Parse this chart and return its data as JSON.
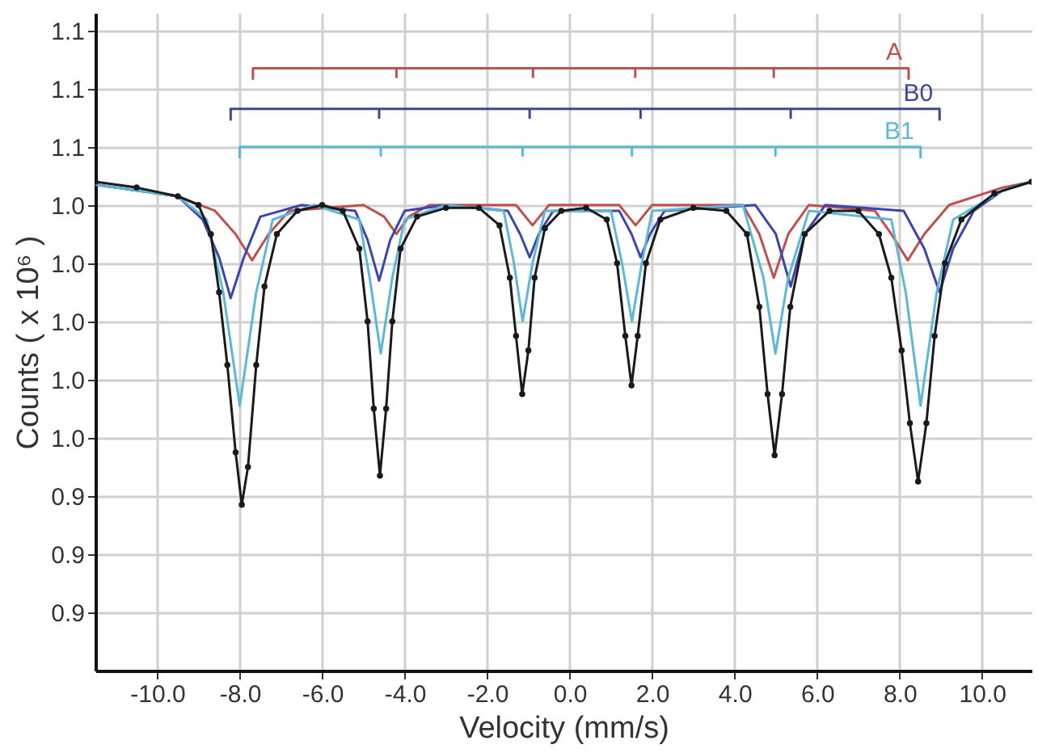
{
  "chart_data": {
    "type": "line",
    "xlabel": "Velocity (mm/s)",
    "ylabel": "Counts ( x 10⁶ )",
    "xlim": [
      -11.5,
      11.2
    ],
    "ylim": [
      0.88,
      1.106
    ],
    "xticks": [
      {
        "value": -10,
        "label": "-10.0"
      },
      {
        "value": -8,
        "label": "-8.0"
      },
      {
        "value": -6,
        "label": "-6.0"
      },
      {
        "value": -4,
        "label": "-4.0"
      },
      {
        "value": -2,
        "label": "-2.0"
      },
      {
        "value": 0,
        "label": "0.0"
      },
      {
        "value": 2,
        "label": "2.0"
      },
      {
        "value": 4,
        "label": "4.0"
      },
      {
        "value": 6,
        "label": "6.0"
      },
      {
        "value": 8,
        "label": "8.0"
      },
      {
        "value": 10,
        "label": "10.0"
      }
    ],
    "yticks": [
      {
        "value": 0.9,
        "label": "0.9"
      },
      {
        "value": 0.92,
        "label": "0.9"
      },
      {
        "value": 0.94,
        "label": "0.9"
      },
      {
        "value": 0.96,
        "label": "1.0"
      },
      {
        "value": 0.98,
        "label": "1.0"
      },
      {
        "value": 1.0,
        "label": "1.0"
      },
      {
        "value": 1.02,
        "label": "1.0"
      },
      {
        "value": 1.04,
        "label": "1.0"
      },
      {
        "value": 1.06,
        "label": "1.1"
      },
      {
        "value": 1.08,
        "label": "1.1"
      },
      {
        "value": 1.1,
        "label": "1.1"
      }
    ],
    "grid": true,
    "line_style": "solid",
    "series": [
      {
        "name": "A",
        "marker": "none",
        "color": "#c0504d",
        "x": [
          -7.68,
          -7.68,
          -4.2,
          -4.2,
          -4.2,
          -0.89,
          -0.89,
          -0.89,
          1.59,
          1.59,
          1.59,
          4.95,
          4.95,
          4.95,
          8.22,
          8.22
        ],
        "values": [
          1.083,
          1.087,
          1.087,
          1.084,
          1.087,
          1.087,
          1.084,
          1.087,
          1.087,
          1.084,
          1.087,
          1.087,
          1.084,
          1.087,
          1.087,
          1.083
        ]
      },
      {
        "name": "B0",
        "marker": "none",
        "color": "#3f4a8a",
        "x": [
          -8.22,
          -8.22,
          -4.62,
          -4.62,
          -4.62,
          -0.97,
          -0.97,
          -0.97,
          1.72,
          1.72,
          1.72,
          5.36,
          5.36,
          5.36,
          8.97,
          8.97
        ],
        "values": [
          1.069,
          1.073,
          1.073,
          1.07,
          1.073,
          1.073,
          1.07,
          1.073,
          1.073,
          1.07,
          1.073,
          1.073,
          1.07,
          1.073,
          1.073,
          1.069
        ]
      },
      {
        "name": "B1",
        "marker": "none",
        "color": "#5bb8d6",
        "x": [
          -8.0,
          -8.0,
          -4.58,
          -4.58,
          -4.58,
          -1.14,
          -1.14,
          -1.14,
          1.51,
          1.51,
          1.51,
          4.99,
          4.99,
          4.99,
          8.51,
          8.51
        ],
        "values": [
          1.056,
          1.06,
          1.06,
          1.057,
          1.06,
          1.06,
          1.057,
          1.06,
          1.06,
          1.057,
          1.06,
          1.06,
          1.057,
          1.06,
          1.06,
          1.056
        ]
      },
      {
        "marker": "none",
        "color": "#c0504d",
        "x": [
          -11.5,
          -9.5,
          -8.6,
          -8.1,
          -7.7,
          -7.3,
          -6.8,
          -5.0,
          -4.5,
          -4.2,
          -3.9,
          -3.4,
          -1.3,
          -0.9,
          -0.5,
          1.2,
          1.6,
          2.0,
          4.2,
          4.6,
          4.95,
          5.3,
          5.8,
          7.4,
          7.8,
          8.2,
          8.6,
          9.2,
          10.5,
          11.2
        ],
        "values": [
          1.047,
          1.043,
          1.038,
          1.03,
          1.021,
          1.03,
          1.038,
          1.04,
          1.036,
          1.03,
          1.036,
          1.04,
          1.04,
          1.033,
          1.04,
          1.04,
          1.033,
          1.04,
          1.04,
          1.03,
          1.015,
          1.03,
          1.04,
          1.038,
          1.03,
          1.021,
          1.03,
          1.04,
          1.046,
          1.048
        ]
      },
      {
        "marker": "none",
        "color": "#3b45b0",
        "x": [
          -11.5,
          -9.5,
          -8.9,
          -8.5,
          -8.22,
          -7.9,
          -7.5,
          -6.5,
          -5.2,
          -4.9,
          -4.62,
          -4.35,
          -4.0,
          -3.0,
          -1.5,
          -1.2,
          -0.97,
          -0.75,
          -0.4,
          1.2,
          1.5,
          1.72,
          1.95,
          2.3,
          4.5,
          5.0,
          5.36,
          5.7,
          6.2,
          8.1,
          8.6,
          8.97,
          9.3,
          9.8,
          10.5,
          11.2
        ],
        "values": [
          1.047,
          1.043,
          1.035,
          1.022,
          1.008,
          1.022,
          1.036,
          1.04,
          1.038,
          1.028,
          1.014,
          1.028,
          1.038,
          1.04,
          1.038,
          1.03,
          1.022,
          1.03,
          1.038,
          1.038,
          1.03,
          1.022,
          1.03,
          1.038,
          1.04,
          1.03,
          1.012,
          1.03,
          1.04,
          1.038,
          1.025,
          1.01,
          1.025,
          1.038,
          1.045,
          1.048
        ]
      },
      {
        "marker": "none",
        "color": "#5bb8d6",
        "x": [
          -11.5,
          -9.5,
          -8.8,
          -8.4,
          -8.0,
          -7.6,
          -7.2,
          -6.2,
          -5.1,
          -4.85,
          -4.58,
          -4.3,
          -4.0,
          -3.0,
          -1.6,
          -1.35,
          -1.14,
          -0.9,
          -0.6,
          1.0,
          1.27,
          1.51,
          1.75,
          2.0,
          4.2,
          4.7,
          4.99,
          5.3,
          5.8,
          7.8,
          8.15,
          8.51,
          8.9,
          9.3,
          10.5,
          11.2
        ],
        "values": [
          1.047,
          1.043,
          1.035,
          1.01,
          0.971,
          1.01,
          1.035,
          1.04,
          1.035,
          1.015,
          0.989,
          1.015,
          1.035,
          1.04,
          1.038,
          1.02,
          1.0,
          1.02,
          1.038,
          1.038,
          1.02,
          1.0,
          1.02,
          1.038,
          1.04,
          1.015,
          0.989,
          1.015,
          1.038,
          1.035,
          1.01,
          0.971,
          1.01,
          1.035,
          1.045,
          1.048
        ]
      },
      {
        "marker": "circle",
        "color": "#1a1a1a",
        "x": [
          -11.5,
          -10.5,
          -9.5,
          -9.0,
          -8.7,
          -8.5,
          -8.3,
          -8.1,
          -7.95,
          -7.8,
          -7.6,
          -7.4,
          -7.1,
          -6.6,
          -6.0,
          -5.5,
          -5.1,
          -4.9,
          -4.75,
          -4.6,
          -4.45,
          -4.3,
          -4.1,
          -3.7,
          -3.0,
          -2.2,
          -1.7,
          -1.45,
          -1.3,
          -1.15,
          -1.0,
          -0.85,
          -0.6,
          -0.2,
          0.4,
          0.9,
          1.15,
          1.35,
          1.5,
          1.65,
          1.85,
          2.2,
          3.0,
          3.8,
          4.3,
          4.6,
          4.8,
          4.97,
          5.15,
          5.35,
          5.7,
          6.3,
          7.0,
          7.5,
          7.8,
          8.05,
          8.25,
          8.45,
          8.65,
          8.85,
          9.1,
          9.5,
          10.3,
          11.2
        ],
        "values": [
          1.048,
          1.046,
          1.043,
          1.04,
          1.03,
          1.01,
          0.985,
          0.955,
          0.937,
          0.95,
          0.985,
          1.012,
          1.03,
          1.038,
          1.04,
          1.038,
          1.025,
          1.0,
          0.97,
          0.947,
          0.97,
          1.0,
          1.025,
          1.036,
          1.039,
          1.039,
          1.033,
          1.015,
          0.995,
          0.975,
          0.99,
          1.015,
          1.032,
          1.038,
          1.039,
          1.035,
          1.02,
          0.995,
          0.978,
          0.995,
          1.02,
          1.035,
          1.039,
          1.038,
          1.03,
          1.005,
          0.975,
          0.954,
          0.975,
          1.005,
          1.03,
          1.038,
          1.038,
          1.03,
          1.015,
          0.99,
          0.965,
          0.945,
          0.965,
          0.995,
          1.02,
          1.035,
          1.044,
          1.048
        ]
      }
    ]
  }
}
